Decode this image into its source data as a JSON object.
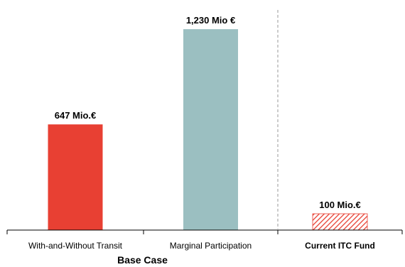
{
  "chart_data": {
    "type": "bar",
    "categories": [
      "With-and-Without Transit",
      "Marginal Participation",
      "Current ITC Fund"
    ],
    "values": [
      647,
      1230,
      100
    ],
    "value_labels": [
      "647 Mio.€",
      "1,230 Mio €",
      "100 Mio.€"
    ],
    "bar_colors": [
      "#e84033",
      "#9bbfc1",
      "#e84033"
    ],
    "bar_styles": [
      "solid",
      "solid",
      "hatched"
    ],
    "category_bold": [
      false,
      false,
      true
    ],
    "group_label": "Base Case",
    "group_categories": [
      "With-and-Without Transit",
      "Marginal Participation"
    ],
    "separator": {
      "style": "dashed",
      "color": "#999999",
      "between": [
        "Marginal Participation",
        "Current ITC Fund"
      ]
    },
    "ylim": [
      0,
      1400
    ],
    "grid": false,
    "legend": "none"
  }
}
